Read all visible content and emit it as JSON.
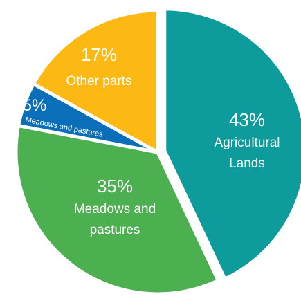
{
  "chart_data": {
    "type": "pie",
    "start_angle_deg": 0,
    "direction": "clockwise",
    "slices": [
      {
        "value": 43,
        "percent_label": "43%",
        "label_lines": [
          "Agricultural",
          "Lands"
        ],
        "color": "#0E9B9B",
        "exploded": true
      },
      {
        "value": 35,
        "percent_label": "35%",
        "label_lines": [
          "Meadows and",
          "pastures"
        ],
        "color": "#4CAF50",
        "exploded": false
      },
      {
        "value": 5,
        "percent_label": "5%",
        "label_lines": [
          "Meadows and pastures"
        ],
        "color": "#0A6FB8",
        "exploded": false
      },
      {
        "value": 17,
        "percent_label": "17%",
        "label_lines": [
          "Other parts"
        ],
        "color": "#FDB913",
        "exploded": false
      }
    ]
  }
}
